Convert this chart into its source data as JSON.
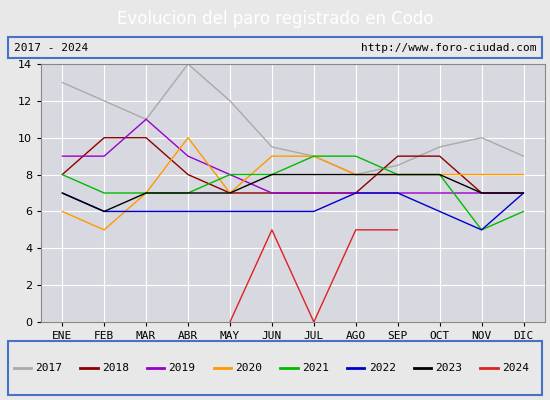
{
  "title": "Evolucion del paro registrado en Codo",
  "subtitle_left": "2017 - 2024",
  "subtitle_right": "http://www.foro-ciudad.com",
  "months": [
    "ENE",
    "FEB",
    "MAR",
    "ABR",
    "MAY",
    "JUN",
    "JUL",
    "AGO",
    "SEP",
    "OCT",
    "NOV",
    "DIC"
  ],
  "ylim_min": 0,
  "ylim_max": 14,
  "yticks": [
    0,
    2,
    4,
    6,
    8,
    10,
    12,
    14
  ],
  "series": [
    {
      "year": "2017",
      "color": "#aaaaaa",
      "lw": 1.0,
      "x": [
        0,
        1,
        2,
        3,
        4,
        5,
        6,
        7,
        8,
        9,
        10,
        11
      ],
      "y": [
        13,
        12,
        11,
        14,
        12,
        9.5,
        9,
        8,
        8.5,
        9.5,
        10,
        9
      ]
    },
    {
      "year": "2018",
      "color": "#8b0000",
      "lw": 1.0,
      "x": [
        0,
        1,
        2,
        3,
        4,
        5,
        6,
        7,
        8,
        9,
        10,
        11
      ],
      "y": [
        8,
        10,
        10,
        8,
        7,
        7,
        7,
        7,
        9,
        9,
        7,
        7
      ]
    },
    {
      "year": "2019",
      "color": "#9900cc",
      "lw": 1.0,
      "x": [
        0,
        1,
        2,
        3,
        4,
        5,
        6,
        7,
        8,
        9,
        10,
        11
      ],
      "y": [
        9,
        9,
        11,
        9,
        8,
        7,
        7,
        7,
        7,
        7,
        7,
        7
      ]
    },
    {
      "year": "2020",
      "color": "#ff9900",
      "lw": 1.0,
      "x": [
        0,
        1,
        2,
        3,
        4,
        5,
        6,
        7,
        8,
        9,
        10,
        11
      ],
      "y": [
        6,
        5,
        7,
        10,
        7,
        9,
        9,
        8,
        8,
        8,
        8,
        8
      ]
    },
    {
      "year": "2021",
      "color": "#00bb00",
      "lw": 1.0,
      "x": [
        0,
        1,
        2,
        3,
        4,
        5,
        6,
        7,
        8,
        9,
        10,
        11
      ],
      "y": [
        8,
        7,
        7,
        7,
        8,
        8,
        9,
        9,
        8,
        8,
        5,
        6
      ]
    },
    {
      "year": "2022",
      "color": "#0000cc",
      "lw": 1.0,
      "x": [
        0,
        1,
        2,
        3,
        4,
        5,
        6,
        7,
        8,
        9,
        10,
        11
      ],
      "y": [
        7,
        6,
        6,
        6,
        6,
        6,
        6,
        7,
        7,
        6,
        5,
        7
      ]
    },
    {
      "year": "2023",
      "color": "#000000",
      "lw": 1.0,
      "x": [
        0,
        1,
        2,
        3,
        4,
        5,
        6,
        7,
        8,
        9,
        10,
        11
      ],
      "y": [
        7,
        6,
        7,
        7,
        7,
        8,
        8,
        8,
        8,
        8,
        7,
        7
      ]
    },
    {
      "year": "2024",
      "color": "#dd2222",
      "lw": 1.0,
      "x": [
        4,
        5,
        6,
        7,
        8
      ],
      "y": [
        0,
        5,
        0,
        5,
        5
      ]
    }
  ],
  "title_bg": "#4472c4",
  "title_color": "#ffffff",
  "title_fontsize": 12,
  "plot_bg": "#d8d8e0",
  "outer_bg": "#e8e8e8",
  "grid_color": "#ffffff",
  "border_color": "#4472c4",
  "tick_fontsize": 8,
  "legend_fontsize": 8
}
